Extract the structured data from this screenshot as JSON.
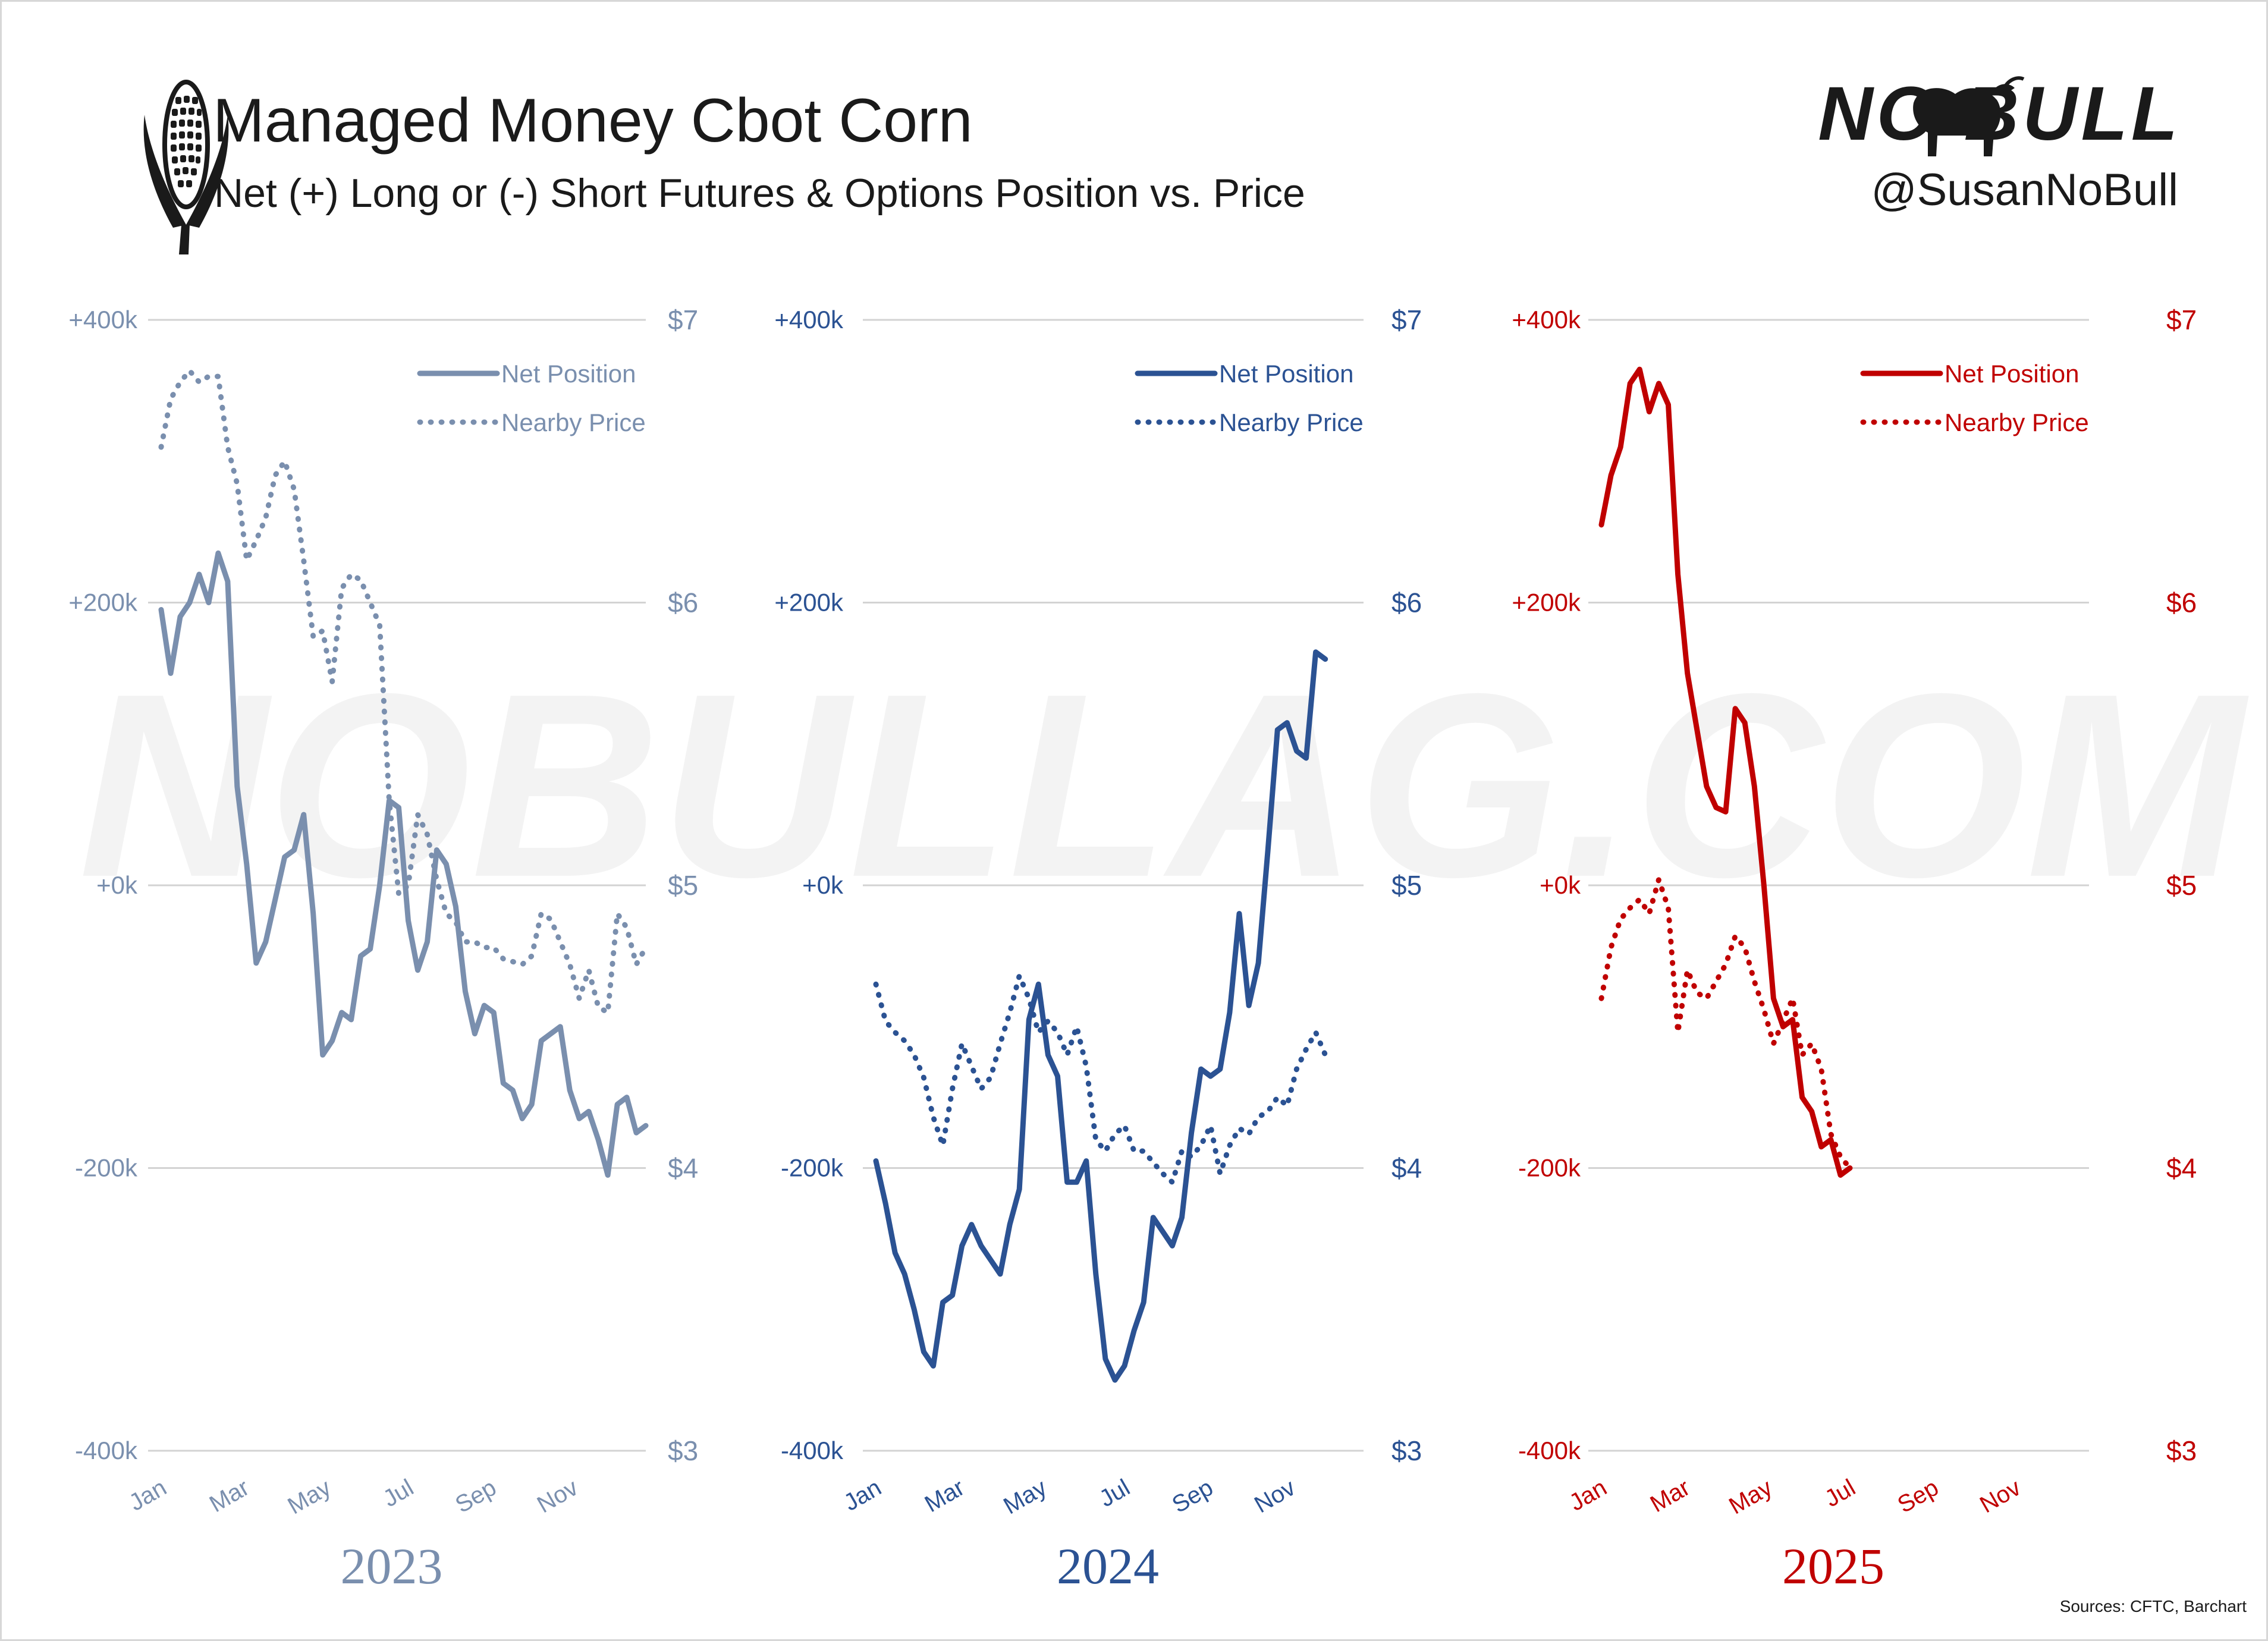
{
  "header": {
    "title": "Managed Money Cbot Corn",
    "subtitle": "Net (+) Long or (-) Short Futures & Options Position vs. Price",
    "logo_text": "NO BULL",
    "handle": "@SusanNoBull",
    "watermark": "NOBULLAG.COM",
    "source": "Sources: CFTC, Barchart",
    "icons": [
      "corn-icon",
      "bull-logo-icon"
    ]
  },
  "chart_data": [
    {
      "type": "line",
      "panel_label": "2023",
      "color": "#7a8fae",
      "left_axis": {
        "ylim": [
          -400,
          400
        ],
        "ticks": [
          "+400k",
          "+200k",
          "+0k",
          "-200k",
          "-400k"
        ],
        "tick_values": [
          400,
          200,
          0,
          -200,
          -400
        ]
      },
      "right_axis": {
        "ylim": [
          3,
          7
        ],
        "ticks": [
          "$7",
          "$6",
          "$5",
          "$4",
          "$3"
        ],
        "tick_values": [
          7,
          6,
          5,
          4,
          3
        ]
      },
      "x_ticks": [
        "Jan",
        "Mar",
        "May",
        "Jul",
        "Sep",
        "Nov"
      ],
      "x_tick_weeks": [
        0,
        8.7,
        17.3,
        26,
        34.7,
        43.3
      ],
      "grid": true,
      "legend_placement": "top-right",
      "series": [
        {
          "name": "Net Position",
          "axis": "left",
          "style": "solid",
          "values": [
            195,
            150,
            190,
            200,
            220,
            200,
            235,
            215,
            70,
            15,
            -55,
            -40,
            -10,
            20,
            25,
            50,
            -20,
            -120,
            -110,
            -90,
            -95,
            -50,
            -45,
            0,
            60,
            55,
            -25,
            -60,
            -40,
            25,
            15,
            -15,
            -75,
            -105,
            -85,
            -90,
            -140,
            -145,
            -165,
            -155,
            -110,
            -105,
            -100,
            -145,
            -165,
            -160,
            -180,
            -205,
            -155,
            -150,
            -175,
            -170
          ]
        },
        {
          "name": "Nearby Price",
          "axis": "right",
          "style": "dotted",
          "values": [
            6.55,
            6.72,
            6.78,
            6.82,
            6.78,
            6.8,
            6.8,
            6.55,
            6.42,
            6.15,
            6.22,
            6.3,
            6.45,
            6.5,
            6.4,
            6.15,
            5.88,
            5.9,
            5.72,
            6.05,
            6.1,
            6.08,
            6.0,
            5.92,
            5.3,
            4.97,
            5.0,
            5.25,
            5.18,
            5.02,
            4.9,
            4.87,
            4.8,
            4.8,
            4.78,
            4.78,
            4.74,
            4.73,
            4.72,
            4.75,
            4.9,
            4.88,
            4.8,
            4.72,
            4.6,
            4.7,
            4.57,
            4.55,
            4.9,
            4.85,
            4.72,
            4.78
          ]
        }
      ]
    },
    {
      "type": "line",
      "panel_label": "2024",
      "color": "#2b5293",
      "left_axis": {
        "ylim": [
          -400,
          400
        ],
        "ticks": [
          "+400k",
          "+200k",
          "+0k",
          "-200k",
          "-400k"
        ],
        "tick_values": [
          400,
          200,
          0,
          -200,
          -400
        ]
      },
      "right_axis": {
        "ylim": [
          3,
          7
        ],
        "ticks": [
          "$7",
          "$6",
          "$5",
          "$4",
          "$3"
        ],
        "tick_values": [
          7,
          6,
          5,
          4,
          3
        ]
      },
      "x_ticks": [
        "Jan",
        "Mar",
        "May",
        "Jul",
        "Sep",
        "Nov"
      ],
      "x_tick_weeks": [
        0,
        8.7,
        17.3,
        26,
        34.7,
        43.3
      ],
      "grid": true,
      "legend_placement": "top-right",
      "series": [
        {
          "name": "Net Position",
          "axis": "left",
          "style": "solid",
          "values": [
            -195,
            -225,
            -260,
            -275,
            -300,
            -330,
            -340,
            -295,
            -290,
            -255,
            -240,
            -255,
            -265,
            -275,
            -240,
            -215,
            -95,
            -70,
            -120,
            -135,
            -210,
            -210,
            -195,
            -275,
            -335,
            -350,
            -340,
            -315,
            -295,
            -235,
            -245,
            -255,
            -235,
            -175,
            -130,
            -135,
            -130,
            -90,
            -20,
            -85,
            -55,
            25,
            110,
            115,
            95,
            90,
            165,
            160
          ]
        },
        {
          "name": "Nearby Price",
          "axis": "right",
          "style": "dotted",
          "values": [
            4.65,
            4.52,
            4.48,
            4.45,
            4.4,
            4.32,
            4.18,
            4.08,
            4.28,
            4.44,
            4.36,
            4.28,
            4.32,
            4.44,
            4.55,
            4.68,
            4.6,
            4.48,
            4.52,
            4.48,
            4.4,
            4.5,
            4.36,
            4.1,
            4.06,
            4.12,
            4.15,
            4.06,
            4.06,
            4.02,
            3.98,
            3.95,
            4.06,
            4.04,
            4.08,
            4.15,
            3.98,
            4.08,
            4.14,
            4.12,
            4.18,
            4.2,
            4.25,
            4.22,
            4.35,
            4.42,
            4.48,
            4.4
          ]
        }
      ]
    },
    {
      "type": "line",
      "panel_label": "2025",
      "color": "#c00000",
      "left_axis": {
        "ylim": [
          -400,
          400
        ],
        "ticks": [
          "+400k",
          "+200k",
          "+0k",
          "-200k",
          "-400k"
        ],
        "tick_values": [
          400,
          200,
          0,
          -200,
          -400
        ]
      },
      "right_axis": {
        "ylim": [
          3,
          7
        ],
        "ticks": [
          "$7",
          "$6",
          "$5",
          "$4",
          "$3"
        ],
        "tick_values": [
          7,
          6,
          5,
          4,
          3
        ]
      },
      "x_ticks": [
        "Jan",
        "Mar",
        "May",
        "Jul",
        "Sep",
        "Nov"
      ],
      "x_tick_weeks": [
        0,
        8.7,
        17.3,
        26,
        34.7,
        43.3
      ],
      "grid": true,
      "legend_placement": "top-right",
      "series": [
        {
          "name": "Net Position",
          "axis": "left",
          "style": "solid",
          "values": [
            255,
            290,
            310,
            355,
            365,
            335,
            355,
            340,
            220,
            150,
            110,
            70,
            55,
            52,
            125,
            115,
            70,
            0,
            -80,
            -100,
            -95,
            -150,
            -160,
            -185,
            -180,
            -205,
            -200
          ]
        },
        {
          "name": "Nearby Price",
          "axis": "right",
          "style": "dotted",
          "values": [
            4.6,
            4.78,
            4.88,
            4.92,
            4.95,
            4.9,
            5.02,
            4.92,
            4.48,
            4.7,
            4.62,
            4.6,
            4.66,
            4.72,
            4.82,
            4.78,
            4.66,
            4.56,
            4.44,
            4.52,
            4.6,
            4.4,
            4.44,
            4.35,
            4.12,
            4.04,
            4.0
          ]
        }
      ]
    }
  ]
}
